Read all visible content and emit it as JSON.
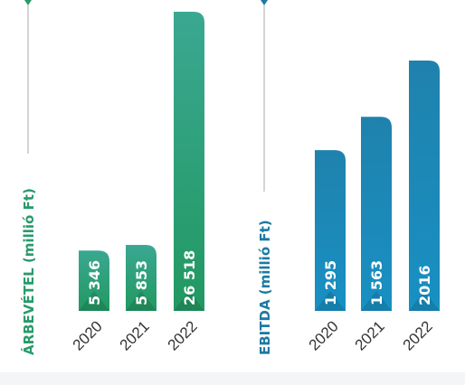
{
  "chart_data": [
    {
      "type": "bar",
      "ylabel": "ÁRBEVÉTEL (millió Ft)",
      "categories": [
        "2020",
        "2021",
        "2022"
      ],
      "values": [
        5346,
        5853,
        26518
      ],
      "value_labels": [
        "5 346",
        "5 853",
        "26 518"
      ],
      "colors": {
        "accent": "#2a9a6b",
        "bar_top": "#3aa892",
        "bar_bottom": "#229861",
        "axis": "#aaaaaa"
      }
    },
    {
      "type": "bar",
      "ylabel": "EBITDA (millió Ft)",
      "categories": [
        "2020",
        "2021",
        "2022"
      ],
      "values": [
        1295,
        1563,
        2016
      ],
      "value_labels": [
        "1 295",
        "1 563",
        "2016"
      ],
      "colors": {
        "accent": "#1d7aa3",
        "bar_top": "#1f82ad",
        "bar_bottom": "#1890c3",
        "axis": "#aaaaaa"
      }
    }
  ]
}
